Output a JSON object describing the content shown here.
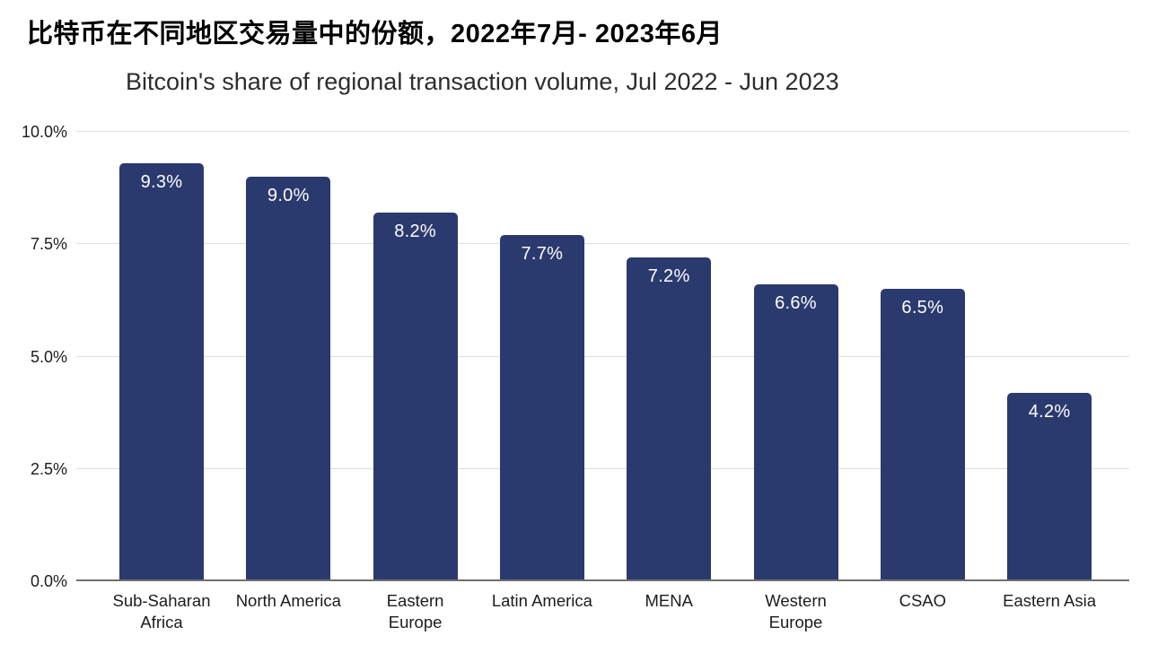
{
  "header": {
    "title_zh": "比特币在不同地区交易量中的份额，2022年7月- 2023年6月",
    "subtitle_en": "Bitcoin's share of regional transaction volume, Jul 2022 - Jun 2023"
  },
  "chart_data": {
    "type": "bar",
    "title": "Bitcoin's share of regional transaction volume, Jul 2022 - Jun 2023",
    "categories": [
      "Sub-Saharan\nAfrica",
      "North America",
      "Eastern\nEurope",
      "Latin America",
      "MENA",
      "Western\nEurope",
      "CSAO",
      "Eastern Asia"
    ],
    "values": [
      9.3,
      9.0,
      8.2,
      7.7,
      7.2,
      6.6,
      6.5,
      4.2
    ],
    "value_labels": [
      "9.3%",
      "9.0%",
      "8.2%",
      "7.7%",
      "7.2%",
      "6.6%",
      "6.5%",
      "4.2%"
    ],
    "xlabel": "",
    "ylabel": "",
    "ylim": [
      0,
      10
    ],
    "yticks": [
      "0.0%",
      "2.5%",
      "5.0%",
      "7.5%",
      "10.0%"
    ],
    "grid": true,
    "legend": "none",
    "bar_color": "#2B3A6E",
    "bar_value_label_color": "#ffffff",
    "gridline_color": "#dedede",
    "axis_line_color": "#6f6f6f"
  }
}
